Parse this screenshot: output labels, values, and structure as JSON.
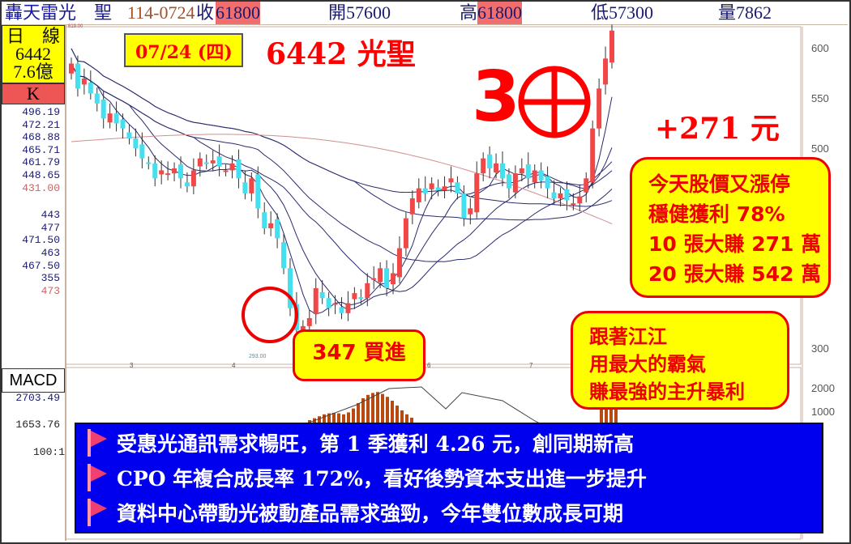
{
  "header": {
    "name": "轟天雷光　聖",
    "date_code": "114-0724",
    "close_label": "收",
    "close": "61800",
    "open_label": "開",
    "open": "57600",
    "high_label": "高",
    "high": "61800",
    "low_label": "低",
    "low": "57300",
    "vol_label": "量",
    "vol": "7862"
  },
  "left_panel": {
    "period": "日　線",
    "code": "6442",
    "amount": "7.6億",
    "k_label": "K",
    "ma_values": [
      {
        "v": "496.19",
        "c": "blue"
      },
      {
        "v": "472.21",
        "c": "blue"
      },
      {
        "v": "468.88",
        "c": "blue"
      },
      {
        "v": "465.71",
        "c": "blue"
      },
      {
        "v": "461.79",
        "c": "blue"
      },
      {
        "v": "448.65",
        "c": "blue"
      },
      {
        "v": "431.00",
        "c": "red"
      }
    ],
    "vol_values": [
      {
        "v": "443",
        "c": "blue"
      },
      {
        "v": "477",
        "c": "blue"
      },
      {
        "v": "471.50",
        "c": "blue"
      },
      {
        "v": "463",
        "c": "blue"
      },
      {
        "v": "467.50",
        "c": "blue"
      },
      {
        "v": "355",
        "c": "blue"
      },
      {
        "v": "473",
        "c": "red"
      }
    ],
    "macd_label": "MACD",
    "macd_values": [
      "2703.49",
      "1653.76",
      "100:1"
    ]
  },
  "annotations": {
    "date": "07/24 (四)",
    "title": "6442 光聖",
    "streak": "3",
    "gain": "+271 元",
    "box1": [
      "今天股價又漲停",
      "穩健獲利 78%",
      "10 張大賺 271 萬",
      "20 張大賺 542 萬"
    ],
    "box2": [
      "跟著江江",
      "用最大的霸氣",
      "賺最強的主升暴利"
    ],
    "buy": "347 買進",
    "bullets": [
      "受惠光通訊需求暢旺，第 1 季獲利 4.26 元，創同期新高",
      "CPO 年複合成長率 172%，看好後勢資本支出進一步提升",
      "資料中心帶動光被動產品需求強勁，今年雙位數成長可期"
    ]
  },
  "colors": {
    "up": "#f04848",
    "down": "#44e0f0",
    "ma": "#2a2a6e",
    "long_ma": "#d09090",
    "accent": "#ff0000",
    "box": "#ffff00",
    "banner": "#0000ee"
  },
  "chart_data": {
    "type": "candlestick",
    "ylim": [
      280,
      630
    ],
    "yticks": [
      "600",
      "550",
      "500",
      "300"
    ],
    "macd_ticks": [
      "2000",
      "1000"
    ],
    "xticks": [
      "3",
      "4",
      "6",
      "7"
    ],
    "high_label": "619.00",
    "low_label": "293.00",
    "closes": [
      585,
      560,
      570,
      555,
      545,
      530,
      535,
      525,
      520,
      510,
      500,
      490,
      485,
      470,
      478,
      475,
      480,
      470,
      462,
      478,
      490,
      485,
      488,
      482,
      478,
      485,
      470,
      455,
      470,
      440,
      420,
      425,
      410,
      380,
      340,
      318,
      322,
      330,
      360,
      350,
      340,
      345,
      335,
      345,
      355,
      350,
      365,
      370,
      380,
      360,
      375,
      400,
      430,
      450,
      460,
      455,
      465,
      458,
      462,
      470,
      455,
      430,
      440,
      475,
      490,
      480,
      485,
      470,
      460,
      475,
      480,
      470,
      478,
      468,
      460,
      450,
      455,
      448,
      445,
      452,
      470,
      520,
      560,
      590,
      618
    ],
    "macd_hist": [
      10,
      14,
      18,
      22,
      24,
      25,
      24,
      22,
      26,
      34,
      45,
      55,
      62,
      66,
      68,
      64,
      58,
      50,
      40,
      30,
      22,
      15
    ]
  }
}
